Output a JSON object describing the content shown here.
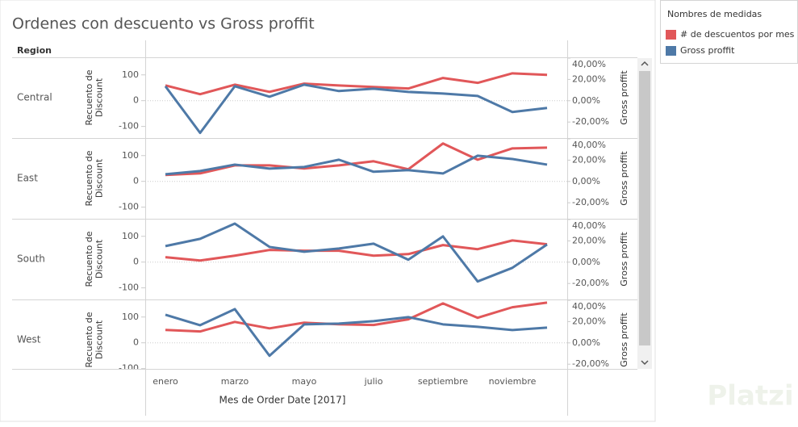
{
  "chart_data": {
    "type": "line",
    "title": "Ordenes con descuento vs Gross proffit",
    "row_header": "Region",
    "x_label": "Mes de Order Date [2017]",
    "legend_title": "Nombres de medidas",
    "watermark": "Platzi",
    "categories": [
      "enero",
      null,
      "marzo",
      null,
      "mayo",
      null,
      "julio",
      null,
      "septiembre",
      null,
      "noviembre",
      null
    ],
    "y_label": [
      "Recuento de",
      "Discount"
    ],
    "y2_label": "Gross proffit",
    "ylim": [
      -145,
      165
    ],
    "yticks": [
      100,
      0,
      -100
    ],
    "y2lim": [
      -35,
      40
    ],
    "y2ticks": [
      {
        "value": 40,
        "label": "40,00%"
      },
      {
        "value": 20,
        "label": "20,00%"
      },
      {
        "value": 0,
        "label": "0,00%"
      },
      {
        "value": -20,
        "label": "-20,00%"
      }
    ],
    "zero_line": true,
    "series": [
      {
        "name": "# de descuentos por mes",
        "color": "#e15759"
      },
      {
        "name": "Gross proffit",
        "color": "#4e79a7",
        "axis": "y2"
      }
    ],
    "panels": [
      {
        "region": "Central",
        "values": [
          [
            59,
            25,
            62,
            34,
            66,
            59,
            53,
            47,
            88,
            69,
            106,
            100
          ],
          [
            13.6,
            -30.2,
            13.6,
            3.8,
            15.1,
            9.1,
            11.3,
            8.3,
            6.8,
            4.5,
            -10.6,
            -6.8
          ]
        ]
      },
      {
        "region": "East",
        "values": [
          [
            25,
            31,
            62,
            62,
            50,
            62,
            78,
            47,
            147,
            84,
            128,
            131
          ],
          [
            6.8,
            9.8,
            15.8,
            12.1,
            13.6,
            20.4,
            9.1,
            10.6,
            7.5,
            24.2,
            21.1,
            15.8
          ]
        ]
      },
      {
        "region": "South",
        "values": [
          [
            19,
            6,
            25,
            47,
            44,
            44,
            25,
            31,
            66,
            50,
            84,
            69
          ],
          [
            15.1,
            21.9,
            36.2,
            14.3,
            9.8,
            12.8,
            17.4,
            2.3,
            24.2,
            -18.1,
            -5.3,
            16.6
          ]
        ]
      },
      {
        "region": "West",
        "values": [
          [
            50,
            44,
            81,
            56,
            78,
            72,
            69,
            91,
            153,
            97,
            138,
            156
          ],
          [
            26.4,
            16.6,
            31.7,
            -12.1,
            17.4,
            18.1,
            20.4,
            24.2,
            17.4,
            15.1,
            12.1,
            14.3
          ]
        ]
      }
    ]
  }
}
